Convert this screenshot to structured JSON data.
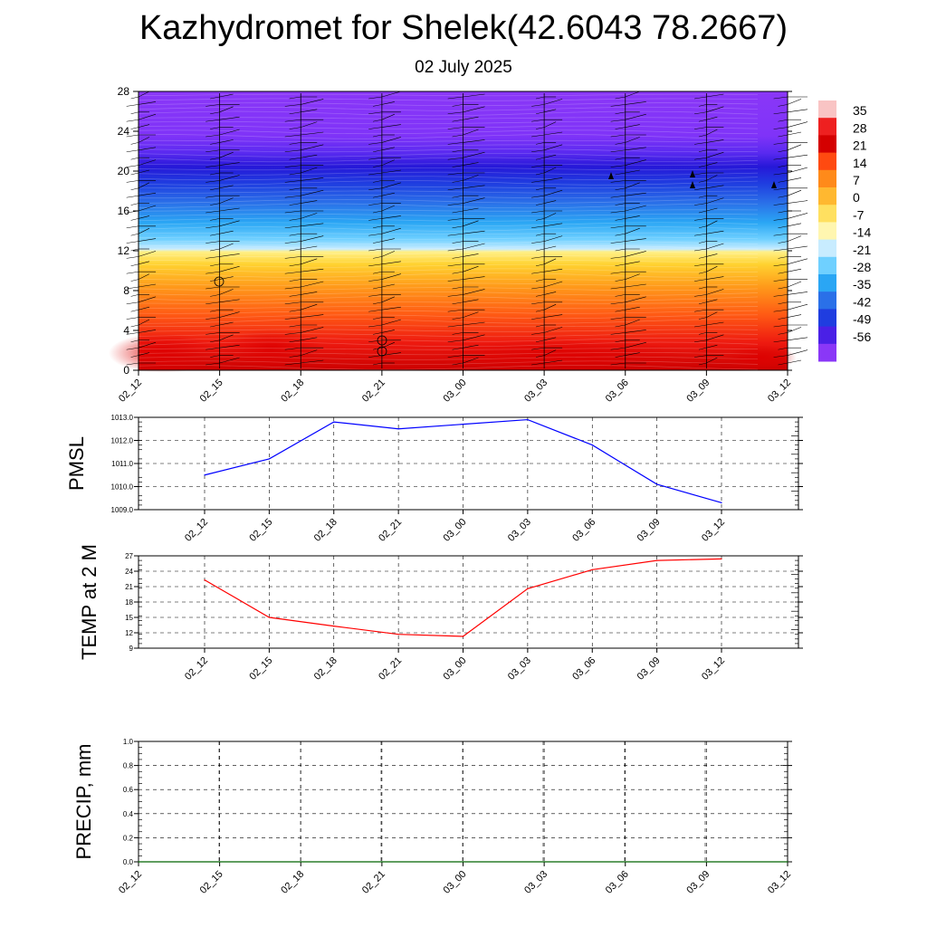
{
  "title": "Kazhydromet for Shelek(42.6043 78.2667)",
  "subtitle": "02 July 2025",
  "chart_data": [
    {
      "type": "heatmap",
      "time_labels": [
        "02_12",
        "02_15",
        "02_18",
        "02_21",
        "03_00",
        "03_03",
        "03_06",
        "03_09",
        "03_12"
      ],
      "y_ticks": [
        "0",
        "4",
        "8",
        "12",
        "16",
        "20",
        "24",
        "28"
      ],
      "ylim": [
        0,
        28
      ],
      "colorbar_labels": [
        "35",
        "28",
        "21",
        "14",
        "7",
        "0",
        "-7",
        "-14",
        "-21",
        "-28",
        "-35",
        "-42",
        "-49",
        "-56"
      ],
      "colorbar_values": [
        35,
        28,
        21,
        14,
        7,
        0,
        -7,
        -14,
        -21,
        -28,
        -35,
        -42,
        -49,
        -56
      ],
      "field": "temperature profile with wind barbs"
    },
    {
      "type": "line",
      "ylabel": "PMSL",
      "x": [
        "02_12",
        "02_15",
        "02_18",
        "02_21",
        "03_00",
        "03_03",
        "03_06",
        "03_09",
        "03_12"
      ],
      "values": [
        1010.5,
        1011.2,
        1012.8,
        1012.5,
        1012.7,
        1012.9,
        1011.8,
        1010.1,
        1009.3
      ],
      "ylim": [
        1009.0,
        1013.0
      ],
      "y_ticks": [
        "1009.0",
        "1010.0",
        "1011.0",
        "1012.0",
        "1013.0"
      ],
      "color": "#0000ff",
      "grid": true
    },
    {
      "type": "line",
      "ylabel": "TEMP at 2 M",
      "x": [
        "02_12",
        "02_15",
        "02_18",
        "02_21",
        "03_00",
        "03_03",
        "03_06",
        "03_09",
        "03_12"
      ],
      "values": [
        22.3,
        15.0,
        13.3,
        11.7,
        11.3,
        20.6,
        24.3,
        26.1,
        26.4
      ],
      "ylim": [
        9,
        27
      ],
      "y_ticks": [
        "9",
        "12",
        "15",
        "18",
        "21",
        "24",
        "27"
      ],
      "color": "#ff0000",
      "grid": true
    },
    {
      "type": "line",
      "ylabel": "PRECIP, mm",
      "x": [
        "02_12",
        "02_15",
        "02_18",
        "02_21",
        "03_00",
        "03_03",
        "03_06",
        "03_09",
        "03_12"
      ],
      "values": [
        0,
        0,
        0,
        0,
        0,
        0,
        0,
        0,
        0
      ],
      "ylim": [
        0,
        1.0
      ],
      "y_ticks": [
        "0.0",
        "0.2",
        "0.4",
        "0.6",
        "0.8",
        "1.0"
      ],
      "color": "#006400",
      "grid": true
    }
  ]
}
